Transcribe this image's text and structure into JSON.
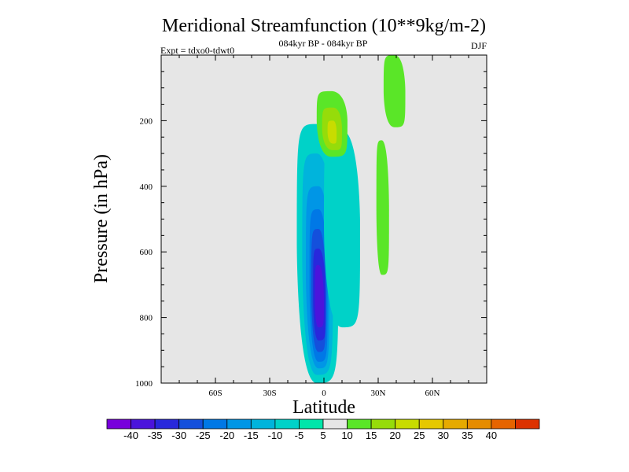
{
  "chart_data": {
    "type": "contour",
    "title": "Meridional Streamfunction (10**9kg/m-2)",
    "subtitle": "084kyr BP - 084kyr BP",
    "left_string": "Expt = tdxo0-tdwt0",
    "right_string": "DJF",
    "xlabel": "Latitude",
    "ylabel": "Pressure (in hPa)",
    "xlim": [
      -90,
      90
    ],
    "ylim": [
      1000,
      0
    ],
    "x_ticks": [
      {
        "value": -60,
        "label": "60S"
      },
      {
        "value": -30,
        "label": "30S"
      },
      {
        "value": 0,
        "label": "0"
      },
      {
        "value": 30,
        "label": "30N"
      },
      {
        "value": 60,
        "label": "60N"
      }
    ],
    "y_ticks": [
      {
        "value": 200,
        "label": "200"
      },
      {
        "value": 400,
        "label": "400"
      },
      {
        "value": 600,
        "label": "600"
      },
      {
        "value": 800,
        "label": "800"
      },
      {
        "value": 1000,
        "label": "1000"
      }
    ],
    "levels": [
      -40,
      -35,
      -30,
      -25,
      -20,
      -15,
      -10,
      -5,
      5,
      10,
      15,
      20,
      25,
      30,
      35,
      40
    ],
    "level_labels": [
      "-40",
      "-35",
      "-30",
      "-25",
      "-20",
      "-15",
      "-10",
      "-5",
      "5",
      "10",
      "15",
      "20",
      "25",
      "30",
      "35",
      "40"
    ],
    "colors": [
      "#7800dc",
      "#4b14dc",
      "#2828dc",
      "#1450dc",
      "#0078e6",
      "#0096e6",
      "#00b4dc",
      "#00d2c8",
      "#00e6aa",
      "#e6e6e6",
      "#5ae628",
      "#96dc0a",
      "#c8dc00",
      "#e6c800",
      "#e6aa00",
      "#e68c00",
      "#e66400",
      "#dc3200"
    ],
    "plot_background": "#e6e6e6",
    "cells": [
      {
        "lat_min": -15,
        "lat_max": 8,
        "p_top": 210,
        "p_bot": 1000,
        "lat_c": -4,
        "p_c": 570,
        "level": -5
      },
      {
        "lat_min": -12,
        "lat_max": 5,
        "p_top": 300,
        "p_bot": 975,
        "lat_c": -4,
        "p_c": 620,
        "level": -10
      },
      {
        "lat_min": -10,
        "lat_max": 3,
        "p_top": 400,
        "p_bot": 955,
        "lat_c": -3,
        "p_c": 660,
        "level": -15
      },
      {
        "lat_min": -8,
        "lat_max": 2,
        "p_top": 470,
        "p_bot": 935,
        "lat_c": -3,
        "p_c": 700,
        "level": -20
      },
      {
        "lat_min": -7,
        "lat_max": 1,
        "p_top": 530,
        "p_bot": 905,
        "lat_c": -3,
        "p_c": 720,
        "level": -25
      },
      {
        "lat_min": -6,
        "lat_max": 1,
        "p_top": 590,
        "p_bot": 870,
        "lat_c": -3,
        "p_c": 740,
        "level": -30
      },
      {
        "lat_min": -5,
        "lat_max": 0,
        "p_top": 640,
        "p_bot": 830,
        "lat_c": -3,
        "p_c": 750,
        "level": -35
      },
      {
        "lat_min": 0,
        "lat_max": 20,
        "p_top": 230,
        "p_bot": 830,
        "lat_c": 10,
        "p_c": 520,
        "level": -5
      },
      {
        "lat_min": -4,
        "lat_max": 13,
        "p_top": 110,
        "p_bot": 310,
        "lat_c": 4,
        "p_c": 200,
        "level": 5
      },
      {
        "lat_min": -1,
        "lat_max": 10,
        "p_top": 160,
        "p_bot": 290,
        "lat_c": 5,
        "p_c": 225,
        "level": 10
      },
      {
        "lat_min": 2,
        "lat_max": 7,
        "p_top": 200,
        "p_bot": 270,
        "lat_c": 5,
        "p_c": 235,
        "level": 15
      },
      {
        "lat_min": 33,
        "lat_max": 45,
        "p_top": 0,
        "p_bot": 220,
        "lat_c": 39,
        "p_c": 110,
        "level": 5
      },
      {
        "lat_min": 29,
        "lat_max": 36,
        "p_top": 260,
        "p_bot": 670,
        "lat_c": 32,
        "p_c": 470,
        "level": 5
      }
    ]
  }
}
